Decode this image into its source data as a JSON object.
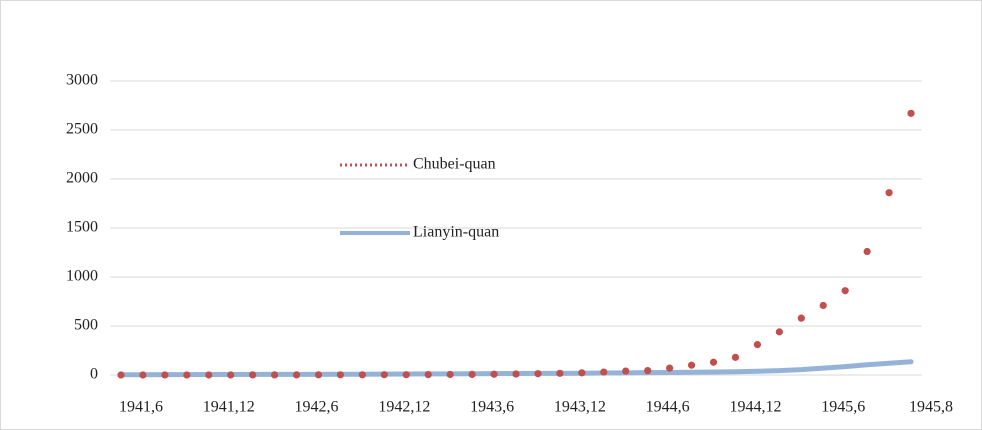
{
  "chart_data": {
    "type": "line",
    "categories": [
      "1941,6",
      null,
      null,
      null,
      "1941,12",
      null,
      null,
      null,
      "1942,6",
      null,
      null,
      null,
      "1942,12",
      null,
      null,
      null,
      "1943,6",
      null,
      null,
      null,
      "1943,12",
      null,
      null,
      null,
      "1944,6",
      null,
      null,
      null,
      "1944,12",
      null,
      null,
      null,
      "1945,6",
      null,
      null,
      null,
      "1945,8"
    ],
    "series": [
      {
        "name": "Chubei-quan",
        "color": "#c0504d",
        "style": "dotted",
        "values": [
          0,
          0,
          0,
          0,
          0,
          0,
          1,
          1,
          1,
          2,
          2,
          2,
          3,
          3,
          4,
          5,
          6,
          8,
          10,
          13,
          17,
          22,
          30,
          40,
          45,
          70,
          100,
          130,
          180,
          310,
          440,
          580,
          710,
          860,
          1260,
          1860,
          2670
        ]
      },
      {
        "name": "Lianyin-quan",
        "color": "#95b3d7",
        "style": "solid",
        "values": [
          3,
          3,
          4,
          4,
          5,
          5,
          6,
          6,
          7,
          7,
          8,
          8,
          9,
          10,
          11,
          12,
          13,
          14,
          15,
          16,
          17,
          18,
          20,
          22,
          24,
          26,
          28,
          30,
          33,
          38,
          45,
          55,
          70,
          85,
          105,
          120,
          135
        ]
      }
    ],
    "ylim": [
      0,
      3000
    ],
    "yticks": [
      0,
      500,
      1000,
      1500,
      2000,
      2500,
      3000
    ],
    "grid": true,
    "legend": "center"
  }
}
